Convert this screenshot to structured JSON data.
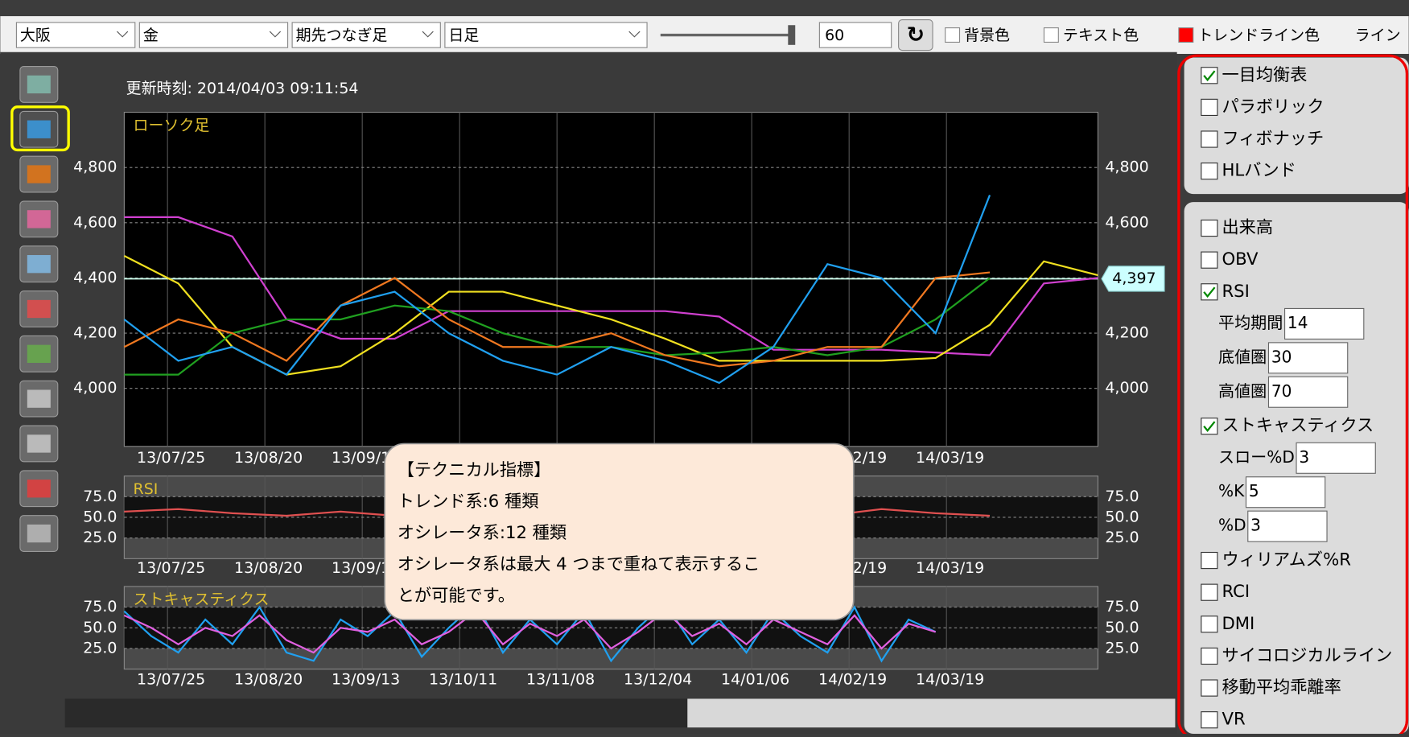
{
  "toolbar": {
    "dropdowns": [
      "大阪",
      "金",
      "期先つなぎ足",
      "日足"
    ],
    "slider_value": 60,
    "color_options": [
      {
        "label": "背景色",
        "color": "#ffffff"
      },
      {
        "label": "テキスト色",
        "color": "#ffffff"
      },
      {
        "label": "トレンドライン色",
        "color": "#ff0000"
      },
      {
        "label": "ライン",
        "color": null
      }
    ]
  },
  "update_time": "更新時刻: 2014/04/03 09:11:54",
  "chart_data": [
    {
      "type": "line",
      "title": "ローソク足",
      "x": [
        0,
        10,
        20,
        30,
        40,
        50,
        60,
        70,
        80,
        90,
        100,
        110,
        120,
        130,
        140,
        150,
        160,
        170,
        180
      ],
      "xlim": [
        0,
        180
      ],
      "xticks": [
        {
          "value": 8,
          "label": "13/07/25"
        },
        {
          "value": 26,
          "label": "13/08/20"
        },
        {
          "value": 44,
          "label": "13/09/13"
        },
        {
          "value": 62,
          "label": "13/10/11"
        },
        {
          "value": 80,
          "label": "13/11/08"
        },
        {
          "value": 98,
          "label": "13/12/04"
        },
        {
          "value": 116,
          "label": "14/01/06"
        },
        {
          "value": 134,
          "label": "14/02/19"
        },
        {
          "value": 152,
          "label": "14/03/19"
        }
      ],
      "ylim": [
        3790,
        5000
      ],
      "yticks": [
        {
          "value": 4000,
          "label": "4,000"
        },
        {
          "value": 4200,
          "label": "4,200"
        },
        {
          "value": 4400,
          "label": "4,400"
        },
        {
          "value": 4600,
          "label": "4,600"
        },
        {
          "value": 4800,
          "label": "4,800"
        }
      ],
      "current_price": {
        "value": 4397,
        "label": "4,397"
      },
      "series": [
        {
          "color": "#d040d0",
          "values": [
            4620,
            4620,
            4550,
            4250,
            4180,
            4180,
            4280,
            4280,
            4280,
            4280,
            4280,
            4260,
            4140,
            4140,
            4140,
            4130,
            4120,
            4380,
            4400
          ]
        },
        {
          "color": "#f0e020",
          "values": [
            4480,
            4380,
            4150,
            4050,
            4080,
            4200,
            4350,
            4350,
            4300,
            4250,
            4180,
            4100,
            4100,
            4100,
            4100,
            4110,
            4230,
            4460,
            4410
          ]
        },
        {
          "color": "#20a020",
          "values": [
            4050,
            4050,
            4200,
            4250,
            4250,
            4300,
            4280,
            4200,
            4150,
            4150,
            4120,
            4130,
            4150,
            4120,
            4150,
            4250,
            4400,
            null,
            null
          ]
        },
        {
          "color": "#f07820",
          "values": [
            4150,
            4250,
            4200,
            4100,
            4300,
            4400,
            4250,
            4150,
            4150,
            4200,
            4120,
            4080,
            4100,
            4150,
            4150,
            4400,
            4420,
            null,
            null
          ]
        },
        {
          "color": "#20a0f0",
          "values": [
            4250,
            4100,
            4150,
            4050,
            4300,
            4350,
            4200,
            4100,
            4050,
            4150,
            4100,
            4020,
            4150,
            4450,
            4400,
            4200,
            4700,
            null,
            null
          ]
        }
      ]
    },
    {
      "type": "line",
      "title": "RSI",
      "x": [
        0,
        10,
        20,
        30,
        40,
        50,
        60,
        70,
        80,
        90,
        100,
        110,
        120,
        130,
        140,
        150,
        160,
        170,
        180
      ],
      "xlim": [
        0,
        180
      ],
      "ylim": [
        0,
        100
      ],
      "yticks": [
        {
          "value": 25,
          "label": "25.0"
        },
        {
          "value": 50,
          "label": "50.0"
        },
        {
          "value": 75,
          "label": "75.0"
        }
      ],
      "series": [
        {
          "color": "#e05050",
          "values": [
            57,
            60,
            55,
            52,
            57,
            52,
            55,
            50,
            48,
            52,
            55,
            50,
            45,
            52,
            60,
            55,
            52,
            null,
            null
          ]
        }
      ]
    },
    {
      "type": "line",
      "title": "ストキャスティクス",
      "x": [
        0,
        5,
        10,
        15,
        20,
        25,
        30,
        35,
        40,
        45,
        50,
        55,
        60,
        65,
        70,
        75,
        80,
        85,
        90,
        95,
        100,
        105,
        110,
        115,
        120,
        125,
        130,
        135,
        140,
        145,
        150
      ],
      "xlim": [
        0,
        180
      ],
      "ylim": [
        0,
        100
      ],
      "yticks": [
        {
          "value": 25,
          "label": "25.0"
        },
        {
          "value": 50,
          "label": "50.0"
        },
        {
          "value": 75,
          "label": "75.0"
        }
      ],
      "series": [
        {
          "color": "#20a0f0",
          "values": [
            70,
            40,
            20,
            60,
            30,
            75,
            20,
            10,
            60,
            40,
            70,
            15,
            50,
            80,
            20,
            60,
            30,
            70,
            10,
            50,
            80,
            30,
            60,
            20,
            70,
            40,
            20,
            75,
            10,
            60,
            45
          ]
        },
        {
          "color": "#e060e0",
          "values": [
            65,
            50,
            30,
            50,
            40,
            65,
            35,
            20,
            50,
            45,
            60,
            30,
            45,
            70,
            30,
            55,
            40,
            60,
            25,
            45,
            70,
            40,
            55,
            30,
            60,
            45,
            30,
            65,
            25,
            55,
            45
          ]
        }
      ]
    }
  ],
  "tooltip": {
    "lines": [
      "【テクニカル指標】",
      "トレンド系:6 種類",
      "オシレータ系:12 種類",
      "オシレータ系は最大 4 つまで重ねて表示するこ",
      "とが可能です。"
    ]
  },
  "side_panel": {
    "trend": [
      {
        "label": "一目均衡表",
        "checked": true
      },
      {
        "label": "パラボリック",
        "checked": false
      },
      {
        "label": "フィボナッチ",
        "checked": false
      },
      {
        "label": "HLバンド",
        "checked": false
      }
    ],
    "oscillators": [
      {
        "label": "出来高",
        "checked": false
      },
      {
        "label": "OBV",
        "checked": false
      },
      {
        "label": "RSI",
        "checked": true,
        "params": [
          {
            "label": "平均期間",
            "value": 14
          },
          {
            "label": "底値圏",
            "value": 30
          },
          {
            "label": "高値圏",
            "value": 70
          }
        ]
      },
      {
        "label": "ストキャスティクス",
        "checked": true,
        "params": [
          {
            "label": "スロー%D",
            "value": 3
          },
          {
            "label": "%K",
            "value": 5
          },
          {
            "label": "%D",
            "value": 3
          }
        ]
      },
      {
        "label": "ウィリアムズ%R",
        "checked": false
      },
      {
        "label": "RCI",
        "checked": false
      },
      {
        "label": "DMI",
        "checked": false
      },
      {
        "label": "サイコロジカルライン",
        "checked": false
      },
      {
        "label": "移動平均乖離率",
        "checked": false
      },
      {
        "label": "VR",
        "checked": false
      }
    ]
  }
}
